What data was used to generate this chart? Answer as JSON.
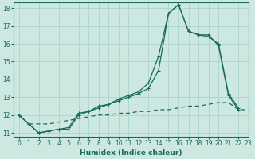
{
  "xlabel": "Humidex (Indice chaleur)",
  "ylabel": "",
  "bg_color": "#cce8e0",
  "grid_color": "#aad4cc",
  "line_color": "#1a6b5a",
  "xlim": [
    -0.5,
    23
  ],
  "ylim": [
    10.8,
    18.3
  ],
  "yticks": [
    11,
    12,
    13,
    14,
    15,
    16,
    17,
    18
  ],
  "xticks": [
    0,
    1,
    2,
    3,
    4,
    5,
    6,
    7,
    8,
    9,
    10,
    11,
    12,
    13,
    14,
    15,
    16,
    17,
    18,
    19,
    20,
    21,
    22,
    23
  ],
  "line_dashed_x": [
    0,
    1,
    2,
    3,
    4,
    5,
    6,
    7,
    8,
    9,
    10,
    11,
    12,
    13,
    14,
    15,
    16,
    17,
    18,
    19,
    20,
    21,
    22,
    23
  ],
  "line_dashed_y": [
    12.0,
    11.5,
    11.5,
    11.5,
    11.6,
    11.7,
    11.8,
    11.9,
    12.0,
    12.0,
    12.1,
    12.1,
    12.2,
    12.2,
    12.3,
    12.3,
    12.4,
    12.5,
    12.5,
    12.6,
    12.7,
    12.7,
    12.3,
    12.3
  ],
  "line_solid1_x": [
    0,
    1,
    2,
    3,
    4,
    5,
    6,
    7,
    8,
    9,
    10,
    11,
    12,
    13,
    14,
    15,
    16,
    17,
    18,
    19,
    20,
    21,
    22
  ],
  "line_solid1_y": [
    12.0,
    11.5,
    11.0,
    11.1,
    11.2,
    11.2,
    12.0,
    12.2,
    12.4,
    12.6,
    12.8,
    13.0,
    13.2,
    13.5,
    14.5,
    17.7,
    18.2,
    16.7,
    16.5,
    16.4,
    16.0,
    13.2,
    12.4
  ],
  "line_solid2_x": [
    0,
    1,
    2,
    3,
    4,
    5,
    6,
    7,
    8,
    9,
    10,
    11,
    12,
    13,
    14,
    15,
    16,
    17,
    18,
    19,
    20,
    21,
    22
  ],
  "line_solid2_y": [
    12.0,
    11.5,
    11.0,
    11.1,
    11.2,
    11.3,
    12.1,
    12.2,
    12.5,
    12.6,
    12.9,
    13.1,
    13.3,
    13.8,
    15.3,
    17.7,
    18.2,
    16.7,
    16.5,
    16.5,
    15.9,
    13.1,
    12.3
  ]
}
